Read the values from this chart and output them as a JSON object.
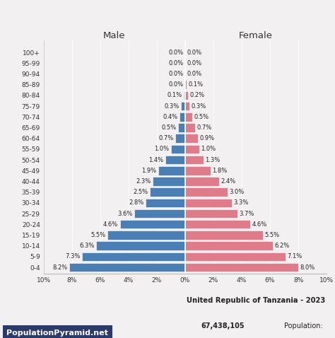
{
  "age_groups": [
    "0-4",
    "5-9",
    "10-14",
    "15-19",
    "20-24",
    "25-29",
    "30-34",
    "35-39",
    "40-44",
    "45-49",
    "50-54",
    "55-59",
    "60-64",
    "65-69",
    "70-74",
    "75-79",
    "80-84",
    "85-89",
    "90-94",
    "95-99",
    "100+"
  ],
  "male": [
    8.2,
    7.3,
    6.3,
    5.5,
    4.6,
    3.6,
    2.8,
    2.5,
    2.3,
    1.9,
    1.4,
    1.0,
    0.7,
    0.5,
    0.4,
    0.3,
    0.1,
    0.0,
    0.0,
    0.0,
    0.0
  ],
  "female": [
    8.0,
    7.1,
    6.2,
    5.5,
    4.6,
    3.7,
    3.3,
    3.0,
    2.4,
    1.8,
    1.3,
    1.0,
    0.9,
    0.7,
    0.5,
    0.3,
    0.2,
    0.1,
    0.0,
    0.0,
    0.0
  ],
  "male_color": "#4a7fb5",
  "female_color": "#e07b8a",
  "bg_color": "#f2f0f0",
  "plot_bg_color": "#f2f0f0",
  "title_line1": "United Republic of Tanzania - 2023",
  "title_line2": "Population: ",
  "title_line2_bold": "67,438,105",
  "xlabel_left": "Male",
  "xlabel_right": "Female",
  "watermark": "PopulationPyramid.net",
  "watermark_bg": "#2b3a6b",
  "xlim": 10,
  "bar_height": 0.82,
  "label_fontsize": 6.0,
  "axis_fontsize": 6.5,
  "header_fontsize": 9.5
}
